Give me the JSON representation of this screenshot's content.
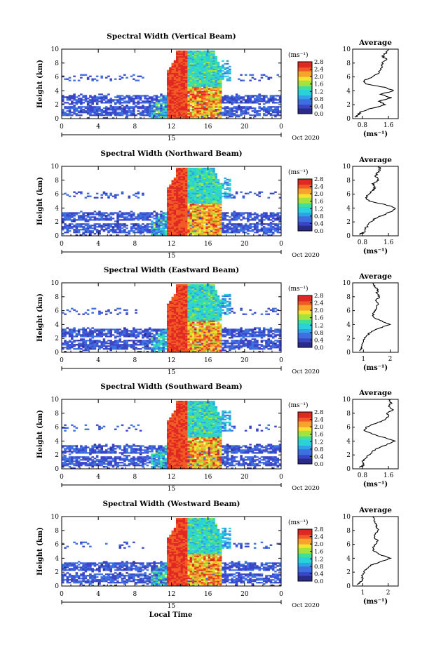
{
  "figure": {
    "xlabel": "Local Time",
    "date_label": "Oct 2020",
    "day_label": "15",
    "ylabel": "Height (km)",
    "unit_label": "(ms⁻¹)",
    "avg_title": "Average"
  },
  "colors": {
    "scale": [
      "#2b2b8a",
      "#3a45c8",
      "#3d6fe0",
      "#2fa3e8",
      "#28d2d8",
      "#3fe09a",
      "#a6e23c",
      "#f5e12e",
      "#f7a32b",
      "#f25a25",
      "#e02822"
    ]
  },
  "chart_data": [
    {
      "type": "heatmap",
      "title": "Spectral Width (Vertical Beam)",
      "x_ticks": [
        "0",
        "4",
        "8",
        "12",
        "16",
        "20",
        "0"
      ],
      "xlim": [
        0,
        24
      ],
      "y_ticks": [
        "0",
        "2",
        "4",
        "6",
        "8",
        "10"
      ],
      "ylim": [
        0,
        10
      ],
      "colorbar_ticks": [
        "2.8",
        "2.4",
        "2.0",
        "1.6",
        "1.2",
        "0.8",
        "0.4",
        "0.0"
      ],
      "colorbar_range": [
        0.0,
        2.8
      ],
      "average": {
        "title": "Average",
        "x_ticks": [
          "0.8",
          "1.6"
        ],
        "xlim": [
          0.5,
          1.9
        ],
        "xlabel": "(ms⁻¹)",
        "height": [
          0.2,
          0.5,
          1,
          1.5,
          2,
          2.5,
          3,
          3.5,
          4,
          4.5,
          5,
          5.5,
          6,
          6.5,
          7,
          7.5,
          8,
          8.5,
          9,
          9.5,
          10
        ],
        "values": [
          0.6,
          0.65,
          0.75,
          1.1,
          1.5,
          1.3,
          1.7,
          1.35,
          1.75,
          1.5,
          0.9,
          0.85,
          1.1,
          1.3,
          1.35,
          1.4,
          1.4,
          1.55,
          1.4,
          1.55,
          1.6
        ]
      }
    },
    {
      "type": "heatmap",
      "title": "Spectral Width (Northward Beam)",
      "x_ticks": [
        "0",
        "4",
        "8",
        "12",
        "16",
        "20",
        "0"
      ],
      "xlim": [
        0,
        24
      ],
      "y_ticks": [
        "0",
        "2",
        "4",
        "6",
        "8",
        "10"
      ],
      "ylim": [
        0,
        10
      ],
      "colorbar_ticks": [
        "2.8",
        "2.4",
        "2.0",
        "1.6",
        "1.2",
        "0.8",
        "0.4",
        "0.0"
      ],
      "colorbar_range": [
        0.0,
        2.8
      ],
      "average": {
        "title": "Average",
        "x_ticks": [
          "0.8",
          "1.6"
        ],
        "xlim": [
          0.5,
          1.9
        ],
        "xlabel": "(ms⁻¹)",
        "height": [
          0.2,
          0.5,
          1,
          1.5,
          2,
          2.5,
          3,
          3.5,
          4,
          4.5,
          5,
          5.5,
          6,
          6.5,
          7,
          7.5,
          8,
          8.5,
          9,
          9.5,
          10
        ],
        "values": [
          0.7,
          0.85,
          0.9,
          0.95,
          1.05,
          1.2,
          1.45,
          1.7,
          1.8,
          1.5,
          1.0,
          0.9,
          1.0,
          1.1,
          1.2,
          1.1,
          1.3,
          1.2,
          1.25,
          1.35,
          1.3
        ]
      }
    },
    {
      "type": "heatmap",
      "title": "Spectral Width (Eastward Beam)",
      "x_ticks": [
        "0",
        "4",
        "8",
        "12",
        "16",
        "20",
        "0"
      ],
      "xlim": [
        0,
        24
      ],
      "y_ticks": [
        "0",
        "2",
        "4",
        "6",
        "8",
        "10"
      ],
      "ylim": [
        0,
        10
      ],
      "colorbar_ticks": [
        "2.8",
        "2.4",
        "2.0",
        "1.6",
        "1.2",
        "0.8",
        "0.4",
        "0.0"
      ],
      "colorbar_range": [
        0.0,
        2.8
      ],
      "average": {
        "title": "Average",
        "x_ticks": [
          "1",
          "2"
        ],
        "xlim": [
          0.6,
          2.3
        ],
        "xlabel": "(ms⁻¹)",
        "height": [
          0.2,
          0.5,
          1,
          1.5,
          2,
          2.5,
          3,
          3.5,
          4,
          4.5,
          5,
          5.5,
          6,
          6.5,
          7,
          7.5,
          8,
          8.5,
          9,
          9.5,
          10
        ],
        "values": [
          0.85,
          0.9,
          0.95,
          1.0,
          1.05,
          1.15,
          1.3,
          1.6,
          2.0,
          1.7,
          1.4,
          1.35,
          1.45,
          1.5,
          1.55,
          1.45,
          1.6,
          1.5,
          1.55,
          1.4,
          1.35
        ]
      }
    },
    {
      "type": "heatmap",
      "title": "Spectral Width (Southward Beam)",
      "x_ticks": [
        "0",
        "4",
        "8",
        "12",
        "16",
        "20",
        "0"
      ],
      "xlim": [
        0,
        24
      ],
      "y_ticks": [
        "0",
        "2",
        "4",
        "6",
        "8",
        "10"
      ],
      "ylim": [
        0,
        10
      ],
      "colorbar_ticks": [
        "2.8",
        "2.4",
        "2.0",
        "1.6",
        "1.2",
        "0.8",
        "0.4",
        "0.0"
      ],
      "colorbar_range": [
        0.0,
        2.8
      ],
      "average": {
        "title": "Average",
        "x_ticks": [
          "0.8",
          "1.6"
        ],
        "xlim": [
          0.5,
          1.9
        ],
        "xlabel": "(ms⁻¹)",
        "height": [
          0.2,
          0.5,
          1,
          1.5,
          2,
          2.5,
          3,
          3.5,
          4,
          4.5,
          5,
          5.5,
          6,
          6.5,
          7,
          7.5,
          8,
          8.5,
          9,
          9.5,
          10
        ],
        "values": [
          0.7,
          0.85,
          0.8,
          0.9,
          1.0,
          1.1,
          1.3,
          1.55,
          1.8,
          1.5,
          1.1,
          0.85,
          0.9,
          1.2,
          1.45,
          1.6,
          1.55,
          1.75,
          1.6,
          1.7,
          1.6
        ]
      }
    },
    {
      "type": "heatmap",
      "title": "Spectral Width (Westward Beam)",
      "x_ticks": [
        "0",
        "4",
        "8",
        "12",
        "16",
        "20",
        "0"
      ],
      "xlim": [
        0,
        24
      ],
      "y_ticks": [
        "0",
        "2",
        "4",
        "6",
        "8",
        "10"
      ],
      "ylim": [
        0,
        10
      ],
      "colorbar_ticks": [
        "2.8",
        "2.4",
        "2.0",
        "1.6",
        "1.2",
        "0.8",
        "0.4",
        "0.0"
      ],
      "colorbar_range": [
        0.0,
        2.8
      ],
      "average": {
        "title": "Average",
        "x_ticks": [
          "1",
          "2"
        ],
        "xlim": [
          0.6,
          2.4
        ],
        "xlabel": "(ms⁻¹)",
        "height": [
          0.2,
          0.5,
          1,
          1.5,
          2,
          2.5,
          3,
          3.5,
          4,
          4.5,
          5,
          5.5,
          6,
          6.5,
          7,
          7.5,
          8,
          8.5,
          9,
          9.5,
          10
        ],
        "values": [
          0.8,
          0.9,
          1.0,
          0.95,
          1.05,
          1.15,
          1.3,
          1.7,
          2.1,
          1.7,
          1.45,
          1.4,
          1.5,
          1.6,
          1.45,
          1.5,
          1.6,
          1.55,
          1.5,
          1.45,
          1.4
        ]
      }
    }
  ]
}
